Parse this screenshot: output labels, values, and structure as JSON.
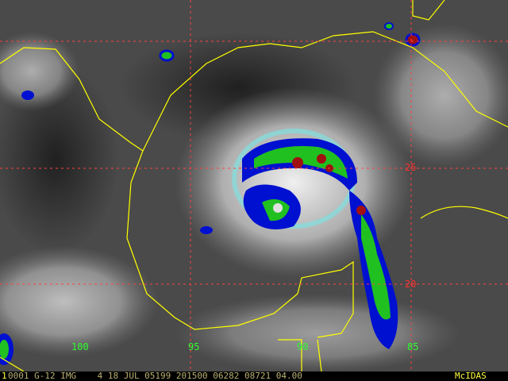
{
  "status_bar": {
    "frame": "1",
    "text": "0001 G-12 IMG    4 18 JUL 05199 201500 06282 08721 04.00",
    "brand": "McIDAS"
  },
  "grid_labels": {
    "latitudes": [
      "25",
      "20"
    ],
    "longitudes": [
      "100",
      "95",
      "90",
      "85"
    ]
  },
  "colors": {
    "grid": "#ff4040",
    "coastline": "#ffff00",
    "lon_label": "#30ff30",
    "lat_label": "#ff3030",
    "enhance_blue": "#0010d0",
    "enhance_green": "#20c020",
    "enhance_red": "#a01010",
    "enhance_cyan": "#80e0e0"
  }
}
